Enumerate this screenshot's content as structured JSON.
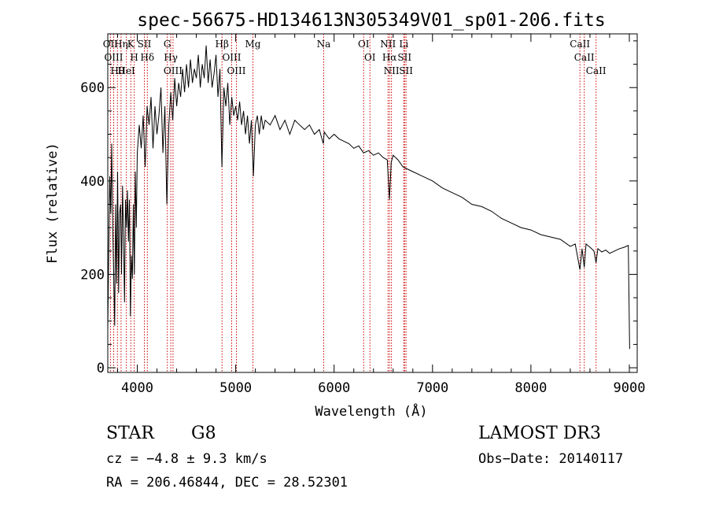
{
  "chart_data": {
    "type": "line",
    "title": "spec-56675-HD134613N305349V01_sp01-206.fits",
    "xlabel": "Wavelength (Å)",
    "ylabel": "Flux (relative)",
    "xlim": [
      3700,
      9080
    ],
    "ylim": [
      -10,
      715
    ],
    "xticks": [
      4000,
      5000,
      6000,
      7000,
      8000,
      9000
    ],
    "yticks": [
      0,
      200,
      400,
      600
    ],
    "grid": false,
    "series": [
      {
        "name": "spectrum",
        "x": [
          3700,
          3710,
          3720,
          3730,
          3740,
          3750,
          3760,
          3770,
          3780,
          3790,
          3800,
          3810,
          3820,
          3830,
          3840,
          3850,
          3860,
          3870,
          3880,
          3890,
          3900,
          3910,
          3920,
          3930,
          3940,
          3950,
          3960,
          3970,
          3980,
          3990,
          4000,
          4020,
          4040,
          4060,
          4080,
          4100,
          4120,
          4140,
          4160,
          4180,
          4200,
          4220,
          4240,
          4260,
          4280,
          4300,
          4320,
          4340,
          4360,
          4380,
          4400,
          4420,
          4440,
          4460,
          4480,
          4500,
          4520,
          4540,
          4560,
          4580,
          4600,
          4620,
          4640,
          4660,
          4680,
          4700,
          4720,
          4740,
          4760,
          4780,
          4800,
          4820,
          4840,
          4860,
          4880,
          4900,
          4920,
          4940,
          4960,
          4980,
          5000,
          5020,
          5040,
          5060,
          5080,
          5100,
          5120,
          5140,
          5160,
          5180,
          5200,
          5220,
          5240,
          5260,
          5280,
          5300,
          5350,
          5400,
          5450,
          5500,
          5550,
          5600,
          5650,
          5700,
          5750,
          5800,
          5850,
          5890,
          5900,
          5950,
          6000,
          6050,
          6100,
          6150,
          6200,
          6250,
          6300,
          6350,
          6400,
          6450,
          6500,
          6540,
          6563,
          6580,
          6600,
          6650,
          6700,
          6750,
          6800,
          6900,
          7000,
          7100,
          7200,
          7300,
          7400,
          7500,
          7600,
          7700,
          7800,
          7900,
          8000,
          8100,
          8200,
          8300,
          8400,
          8450,
          8498,
          8520,
          8542,
          8560,
          8600,
          8640,
          8662,
          8680,
          8720,
          8760,
          8800,
          8850,
          8900,
          8950,
          8990,
          9000,
          9003
        ],
        "values": [
          80,
          260,
          410,
          330,
          480,
          300,
          200,
          90,
          350,
          180,
          420,
          160,
          330,
          350,
          200,
          390,
          280,
          140,
          360,
          300,
          380,
          270,
          360,
          110,
          240,
          190,
          350,
          200,
          420,
          300,
          460,
          520,
          470,
          540,
          430,
          560,
          520,
          580,
          470,
          560,
          500,
          540,
          600,
          460,
          560,
          350,
          520,
          590,
          530,
          620,
          560,
          610,
          580,
          640,
          590,
          650,
          600,
          660,
          610,
          640,
          620,
          670,
          600,
          650,
          620,
          690,
          610,
          660,
          600,
          630,
          670,
          580,
          640,
          430,
          600,
          560,
          610,
          520,
          580,
          540,
          560,
          530,
          570,
          520,
          550,
          500,
          540,
          480,
          530,
          410,
          520,
          540,
          500,
          540,
          510,
          530,
          520,
          540,
          510,
          530,
          500,
          530,
          520,
          510,
          520,
          500,
          510,
          480,
          505,
          490,
          500,
          490,
          485,
          480,
          470,
          475,
          460,
          465,
          455,
          460,
          450,
          445,
          360,
          440,
          455,
          445,
          430,
          425,
          420,
          410,
          400,
          385,
          375,
          365,
          350,
          345,
          335,
          320,
          310,
          300,
          295,
          285,
          280,
          275,
          260,
          265,
          210,
          255,
          215,
          265,
          258,
          250,
          225,
          255,
          248,
          252,
          245,
          250,
          255,
          258,
          262,
          90,
          40
        ]
      }
    ],
    "line_markers": [
      {
        "label": "Hθ",
        "wavelength": 3798
      },
      {
        "label": "OII",
        "wavelength": 3727
      },
      {
        "label": "OIII",
        "wavelength": 3760
      },
      {
        "label": "Hη",
        "wavelength": 3835
      },
      {
        "label": "HeI",
        "wavelength": 3889
      },
      {
        "label": "K",
        "wavelength": 3934
      },
      {
        "label": "H",
        "wavelength": 3969
      },
      {
        "label": "SII",
        "wavelength": 4072
      },
      {
        "label": "Hδ",
        "wavelength": 4102
      },
      {
        "label": "G",
        "wavelength": 4305
      },
      {
        "label": "Hγ",
        "wavelength": 4340
      },
      {
        "label": "OIII",
        "wavelength": 4363
      },
      {
        "label": "Hβ",
        "wavelength": 4861
      },
      {
        "label": "OIII",
        "wavelength": 4959
      },
      {
        "label": "OIII",
        "wavelength": 5007
      },
      {
        "label": "Mg",
        "wavelength": 5175
      },
      {
        "label": "Na",
        "wavelength": 5894
      },
      {
        "label": "OI",
        "wavelength": 6300
      },
      {
        "label": "OI",
        "wavelength": 6364
      },
      {
        "label": "NII",
        "wavelength": 6548
      },
      {
        "label": "Hα",
        "wavelength": 6563
      },
      {
        "label": "NII",
        "wavelength": 6583
      },
      {
        "label": "Li",
        "wavelength": 6708
      },
      {
        "label": "SII",
        "wavelength": 6716
      },
      {
        "label": "SII",
        "wavelength": 6731
      },
      {
        "label": "CaII",
        "wavelength": 8498
      },
      {
        "label": "CaII",
        "wavelength": 8542
      },
      {
        "label": "CaII",
        "wavelength": 8662
      }
    ]
  },
  "footer": {
    "object_class": "STAR",
    "subclass": "G8",
    "survey": "LAMOST DR3",
    "redshift": "cz = −4.8 ± 9.3 km/s",
    "obs_date": "Obs−Date: 20140117",
    "coords": "RA = 206.46844, DEC =  28.52301"
  },
  "colors": {
    "line": "#000000",
    "marker": "#cc0000",
    "background": "#ffffff"
  }
}
